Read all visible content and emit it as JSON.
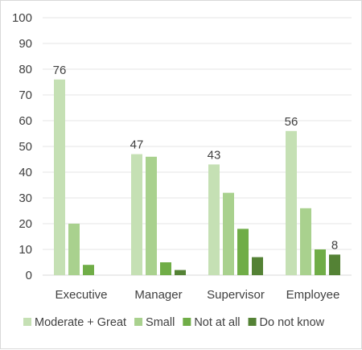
{
  "chart_data": {
    "type": "bar",
    "categories": [
      "Executive",
      "Manager",
      "Supervisor",
      "Employee"
    ],
    "series": [
      {
        "name": "Moderate + Great",
        "values": [
          76,
          47,
          43,
          56
        ],
        "color": "#c5e0b4"
      },
      {
        "name": "Small",
        "values": [
          20,
          46,
          32,
          26
        ],
        "color": "#a9d18e"
      },
      {
        "name": "Not at all",
        "values": [
          4,
          5,
          18,
          10
        ],
        "color": "#70ad47"
      },
      {
        "name": "Do not know",
        "values": [
          null,
          2,
          7,
          8
        ],
        "color": "#548235"
      }
    ],
    "data_labels": [
      {
        "series": 0,
        "category": 0,
        "text": "76"
      },
      {
        "series": 0,
        "category": 1,
        "text": "47"
      },
      {
        "series": 0,
        "category": 2,
        "text": "43"
      },
      {
        "series": 0,
        "category": 3,
        "text": "56"
      },
      {
        "series": 3,
        "category": 3,
        "text": "8"
      }
    ],
    "yticks": [
      "0",
      "10",
      "20",
      "30",
      "40",
      "50",
      "60",
      "70",
      "80",
      "90",
      "100"
    ],
    "ylim": [
      0,
      100
    ],
    "grid": true,
    "legend_position": "bottom",
    "title": "",
    "xlabel": "",
    "ylabel": ""
  }
}
